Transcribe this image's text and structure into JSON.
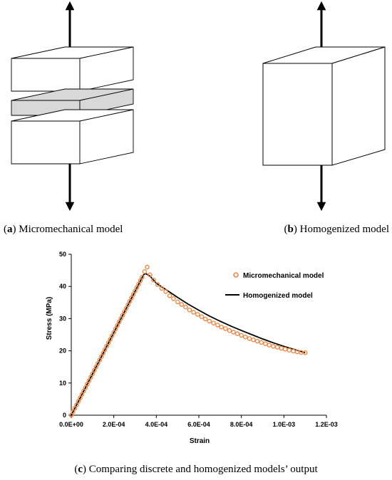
{
  "captions": {
    "a": {
      "letter": "a",
      "text": "Micromechanical model"
    },
    "b": {
      "letter": "b",
      "text": "Homogenized model"
    },
    "c": {
      "letter": "c",
      "text": "Comparing discrete and homogenized models’ output"
    }
  },
  "colors": {
    "micro": "#e8894a",
    "homog": "#000000",
    "layer_fill": "#d8d8d8"
  },
  "chart_data": {
    "type": "scatter",
    "title": "",
    "xlabel": "Strain",
    "ylabel": "Stress (MPa)",
    "xlim": [
      0,
      0.0012
    ],
    "ylim": [
      0,
      50
    ],
    "xticks": [
      0,
      0.0002,
      0.0004,
      0.0006,
      0.0008,
      0.001,
      0.0012
    ],
    "xtick_labels": [
      "0.0E+00",
      "2.0E-04",
      "4.0E-04",
      "6.0E-04",
      "8.0E-04",
      "1.0E-03",
      "1.2E-03"
    ],
    "yticks": [
      0,
      10,
      20,
      30,
      40,
      50
    ],
    "ytick_labels": [
      "0",
      "10",
      "20",
      "30",
      "40",
      "50"
    ],
    "grid": false,
    "legend": "top-right",
    "series": [
      {
        "name": "Micromechanical model",
        "kind": "markers",
        "peak": {
          "x": 0.000357,
          "y": 46
        },
        "x": [
          0,
          8.3e-06,
          1.67e-05,
          2.5e-05,
          3.33e-05,
          4.17e-05,
          5e-05,
          5.83e-05,
          6.67e-05,
          7.5e-05,
          8.33e-05,
          9.17e-05,
          0.0001,
          0.0001083,
          0.0001167,
          0.000125,
          0.0001333,
          0.0001417,
          0.00015,
          0.0001583,
          0.0001667,
          0.000175,
          0.0001833,
          0.0001917,
          0.0002,
          0.0002083,
          0.0002167,
          0.000225,
          0.0002333,
          0.0002417,
          0.00025,
          0.0002583,
          0.0002667,
          0.000275,
          0.0002833,
          0.0002917,
          0.0003,
          0.0003083,
          0.0003167,
          0.000325,
          0.0003333,
          0.000345,
          0.000357,
          0.00037,
          0.000387,
          0.000406,
          0.000425,
          0.000444,
          0.000463,
          0.000481,
          0.0005,
          0.000519,
          0.000538,
          0.000556,
          0.000575,
          0.000594,
          0.000613,
          0.000631,
          0.00065,
          0.000669,
          0.000688,
          0.000706,
          0.000725,
          0.000744,
          0.000763,
          0.000781,
          0.0008,
          0.000819,
          0.000838,
          0.000856,
          0.000875,
          0.000894,
          0.000913,
          0.000931,
          0.00095,
          0.000969,
          0.000988,
          0.001006,
          0.001025,
          0.001044,
          0.001063,
          0.001081,
          0.0011
        ],
        "y": [
          0,
          1.07,
          2.14,
          3.21,
          4.29,
          5.36,
          6.43,
          7.5,
          8.57,
          9.64,
          10.71,
          11.79,
          12.86,
          13.93,
          15,
          16.07,
          17.14,
          18.21,
          19.29,
          20.36,
          21.43,
          22.5,
          23.57,
          24.64,
          25.71,
          26.79,
          27.86,
          28.93,
          30,
          31.07,
          32.14,
          33.21,
          34.29,
          35.36,
          36.43,
          37.5,
          38.57,
          39.64,
          40.71,
          41.79,
          42.86,
          44.6,
          46,
          43.6,
          42,
          40.6,
          39.4,
          38.4,
          37.1,
          36.2,
          35.2,
          34.4,
          33.6,
          32.7,
          32,
          31.3,
          30.6,
          29.9,
          29.2,
          28.6,
          28,
          27.4,
          26.9,
          26.3,
          25.8,
          25.3,
          24.8,
          24.3,
          23.8,
          23.4,
          23,
          22.6,
          22.2,
          21.8,
          21.4,
          21.1,
          20.8,
          20.5,
          20.2,
          19.9,
          19.7,
          19.5,
          19.4
        ]
      },
      {
        "name": "Homogenized model",
        "kind": "line",
        "x": [
          0,
          0.00034,
          0.00035,
          0.00037,
          0.0004,
          0.00045,
          0.0005,
          0.00055,
          0.0006,
          0.00065,
          0.0007,
          0.00075,
          0.0008,
          0.00085,
          0.0009,
          0.00095,
          0.001,
          0.00105,
          0.0011
        ],
        "y": [
          0,
          43.6,
          44,
          43.2,
          41,
          38.8,
          36.6,
          34.5,
          32.6,
          30.8,
          29.2,
          27.7,
          26.3,
          25,
          23.7,
          22.5,
          21.4,
          20.4,
          19.4
        ]
      }
    ]
  }
}
